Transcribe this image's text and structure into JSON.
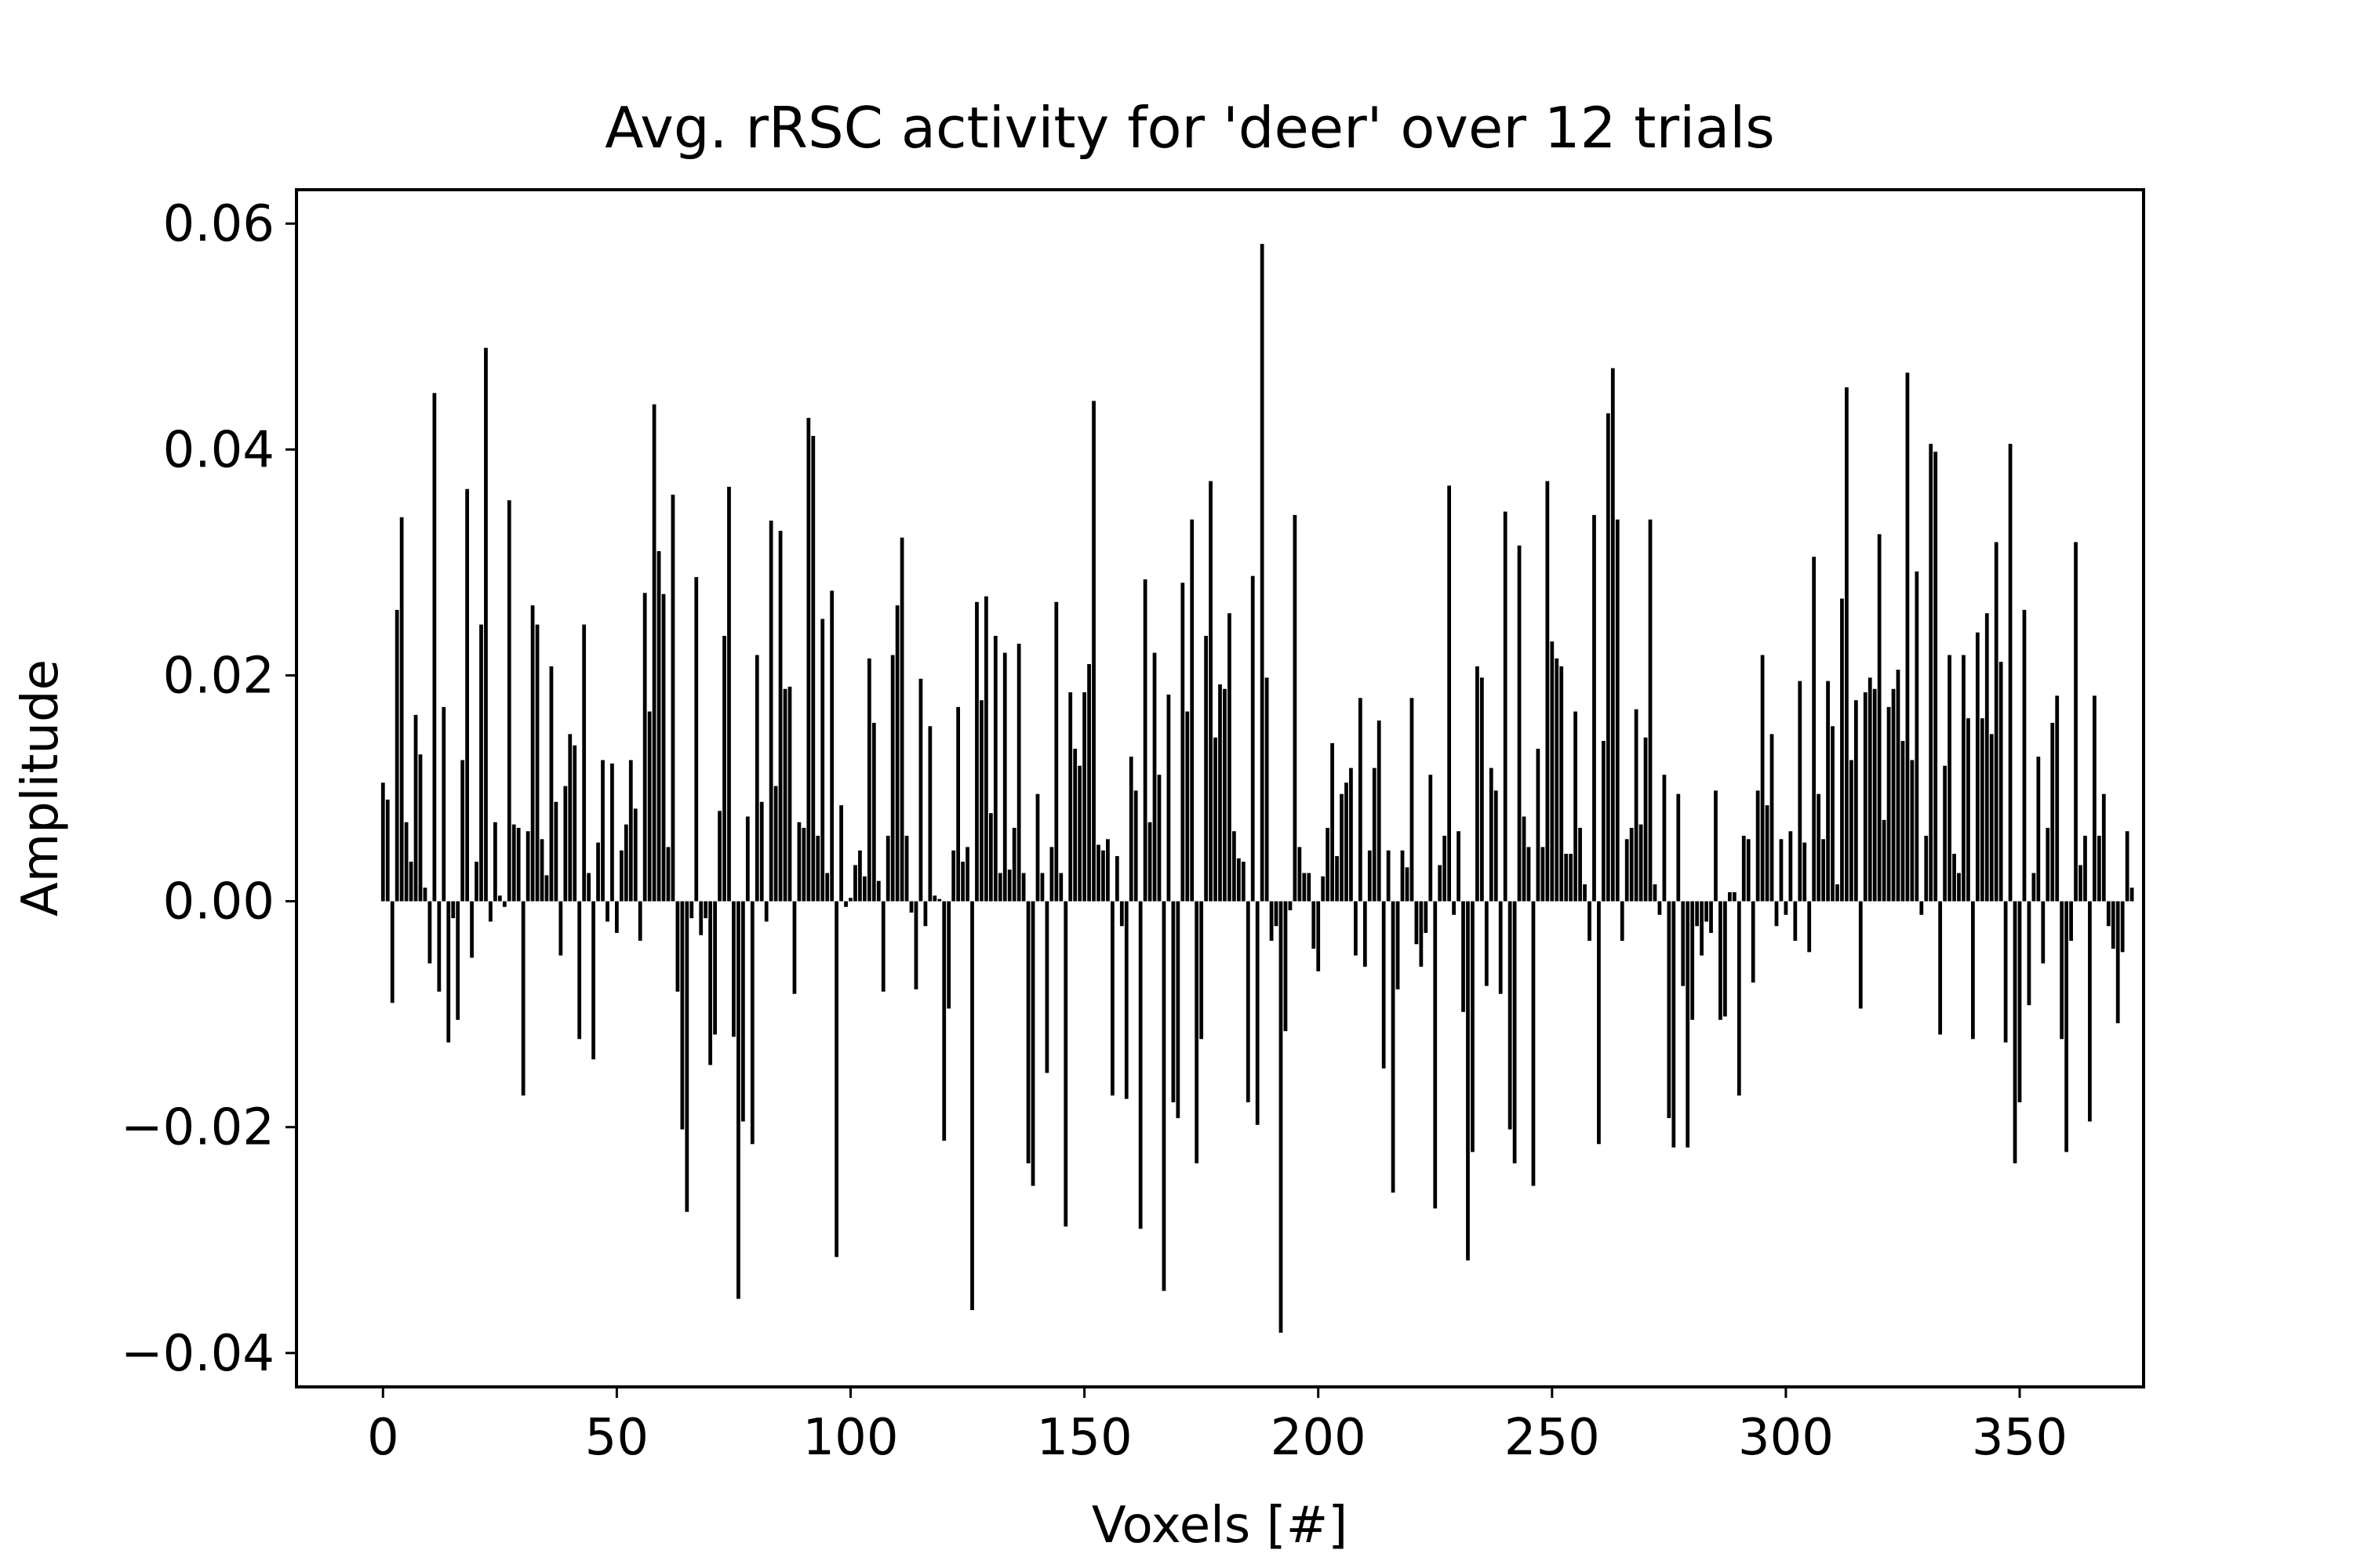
{
  "chart_data": {
    "type": "bar",
    "title": "Avg. rRSC activity for 'deer' over 12 trials",
    "xlabel": "Voxels [#]",
    "ylabel": "Amplitude",
    "xlim": [
      -18.5,
      376.5
    ],
    "ylim": [
      -0.043,
      0.063
    ],
    "xticks": [
      0,
      50,
      100,
      150,
      200,
      250,
      300,
      350
    ],
    "xtick_labels": [
      "0",
      "50",
      "100",
      "150",
      "200",
      "250",
      "300",
      "350"
    ],
    "yticks": [
      0.06,
      0.04,
      0.02,
      0.0,
      -0.02,
      -0.04
    ],
    "ytick_labels": [
      "0.06",
      "0.04",
      "0.02",
      "0.00",
      "−0.02",
      "−0.04"
    ],
    "bar_color": "#000000",
    "grid": false,
    "legend": "none",
    "x_start": 0,
    "values": [
      0.0105,
      0.009,
      -0.009,
      0.0258,
      0.034,
      0.007,
      0.0035,
      0.0165,
      0.013,
      0.0012,
      -0.0055,
      0.045,
      -0.008,
      0.0172,
      -0.0125,
      -0.0015,
      -0.0105,
      0.0125,
      0.0365,
      -0.005,
      0.0035,
      0.0245,
      0.049,
      -0.0018,
      0.007,
      0.0005,
      -0.0005,
      0.0355,
      0.0068,
      0.0065,
      -0.0172,
      0.0062,
      0.0262,
      0.0245,
      0.0055,
      0.0023,
      0.0208,
      0.0088,
      -0.0048,
      0.0102,
      0.0148,
      0.0138,
      -0.0122,
      0.0245,
      0.0025,
      -0.014,
      0.0052,
      0.0125,
      -0.0018,
      0.0122,
      -0.0028,
      0.0045,
      0.0068,
      0.0125,
      0.0082,
      -0.0035,
      0.0273,
      0.0168,
      0.044,
      0.031,
      0.0272,
      0.0048,
      0.036,
      -0.008,
      -0.0202,
      -0.0275,
      -0.0015,
      0.0287,
      -0.003,
      -0.0015,
      -0.0145,
      -0.0118,
      0.008,
      0.0235,
      0.0367,
      -0.012,
      -0.0352,
      -0.0195,
      0.0075,
      -0.0215,
      0.0218,
      0.0088,
      -0.0018,
      0.0337,
      0.0102,
      0.0328,
      0.0188,
      0.019,
      -0.0082,
      0.007,
      0.0065,
      0.0428,
      0.0412,
      0.0058,
      0.025,
      0.0025,
      0.0275,
      -0.0315,
      0.0085,
      -0.0005,
      0.0003,
      0.0032,
      0.0045,
      0.0022,
      0.0215,
      0.0158,
      0.0018,
      -0.008,
      0.0058,
      0.0218,
      0.0262,
      0.0322,
      0.0058,
      -0.001,
      -0.0078,
      0.0197,
      -0.0022,
      0.0155,
      0.0005,
      0.0002,
      -0.0212,
      -0.0095,
      0.0045,
      0.0172,
      0.0035,
      0.0048,
      -0.0362,
      0.0265,
      0.0178,
      0.027,
      0.0078,
      0.0235,
      0.0025,
      0.022,
      0.0028,
      0.0065,
      0.0228,
      0.0025,
      -0.0232,
      -0.0252,
      0.0095,
      0.0025,
      -0.0152,
      0.0048,
      0.0265,
      0.0025,
      -0.0288,
      0.0185,
      0.0135,
      0.012,
      0.0185,
      0.021,
      0.0443,
      0.005,
      0.0045,
      0.0055,
      -0.0172,
      0.004,
      -0.0022,
      -0.0175,
      0.0128,
      0.0098,
      -0.029,
      0.0285,
      0.007,
      0.022,
      0.0112,
      -0.0345,
      0.0183,
      -0.0178,
      -0.0192,
      0.0282,
      0.0168,
      0.0338,
      -0.0232,
      -0.0122,
      0.0235,
      0.0372,
      0.0145,
      0.0192,
      0.0188,
      0.0255,
      0.0062,
      0.0038,
      0.0035,
      -0.0178,
      0.0288,
      -0.0198,
      0.0582,
      0.0198,
      -0.0035,
      -0.0022,
      -0.0382,
      -0.0115,
      -0.0008,
      0.0342,
      0.0048,
      0.0025,
      0.0025,
      -0.0042,
      -0.0062,
      0.0022,
      0.0065,
      0.014,
      0.004,
      0.0095,
      0.0105,
      0.0118,
      -0.0048,
      0.018,
      -0.0058,
      0.0045,
      0.0118,
      0.016,
      -0.0148,
      0.0045,
      -0.0258,
      -0.0078,
      0.0045,
      0.003,
      0.018,
      -0.0038,
      -0.0058,
      -0.0028,
      0.0112,
      -0.0272,
      0.0032,
      0.0058,
      0.0368,
      -0.0012,
      0.0062,
      -0.0098,
      -0.0318,
      -0.0222,
      0.0208,
      0.0198,
      -0.0075,
      0.0118,
      0.0098,
      -0.0082,
      0.0345,
      -0.0202,
      -0.0232,
      0.0315,
      0.0075,
      0.0048,
      -0.0252,
      0.0135,
      0.0048,
      0.0372,
      0.023,
      0.0215,
      0.0208,
      0.0042,
      0.0042,
      0.0168,
      0.0065,
      0.0015,
      -0.0035,
      0.0342,
      -0.0215,
      0.0142,
      0.0432,
      0.0472,
      0.0338,
      -0.0035,
      0.0055,
      0.0065,
      0.017,
      0.0068,
      0.0145,
      0.0338,
      0.0015,
      -0.0012,
      0.0112,
      -0.0192,
      -0.0218,
      0.0095,
      -0.0075,
      -0.0218,
      -0.0105,
      -0.0022,
      -0.0048,
      -0.0018,
      -0.0028,
      0.0098,
      -0.0105,
      -0.0102,
      0.0008,
      0.0008,
      -0.0172,
      0.0058,
      0.0055,
      -0.0072,
      0.0098,
      0.0218,
      0.0085,
      0.0148,
      -0.0022,
      0.0055,
      -0.0012,
      0.0062,
      -0.0035,
      0.0195,
      0.0052,
      -0.0045,
      0.0305,
      0.0095,
      0.0055,
      0.0195,
      0.0155,
      0.0015,
      0.0268,
      0.0455,
      0.0125,
      0.0178,
      -0.0095,
      0.0185,
      0.0198,
      0.0188,
      0.0325,
      0.0072,
      0.0172,
      0.0188,
      0.0205,
      0.0142,
      0.0468,
      0.0125,
      0.0292,
      -0.0012,
      0.0058,
      0.0405,
      0.0398,
      -0.0118,
      0.012,
      0.0218,
      0.0042,
      0.0025,
      0.0218,
      0.0162,
      -0.0122,
      0.0238,
      0.0162,
      0.0255,
      0.0148,
      0.0318,
      0.0212,
      -0.0125,
      0.0405,
      -0.0232,
      -0.0178,
      0.0258,
      -0.0092,
      0.0025,
      0.0128,
      -0.0055,
      0.0065,
      0.0158,
      0.0182,
      -0.0122,
      -0.0222,
      -0.0035,
      0.0318,
      0.0032,
      0.0058,
      -0.0195,
      0.0182,
      0.0058,
      0.0095,
      -0.0022,
      -0.0042,
      -0.0108,
      -0.0045,
      0.0062,
      0.0012
    ]
  }
}
